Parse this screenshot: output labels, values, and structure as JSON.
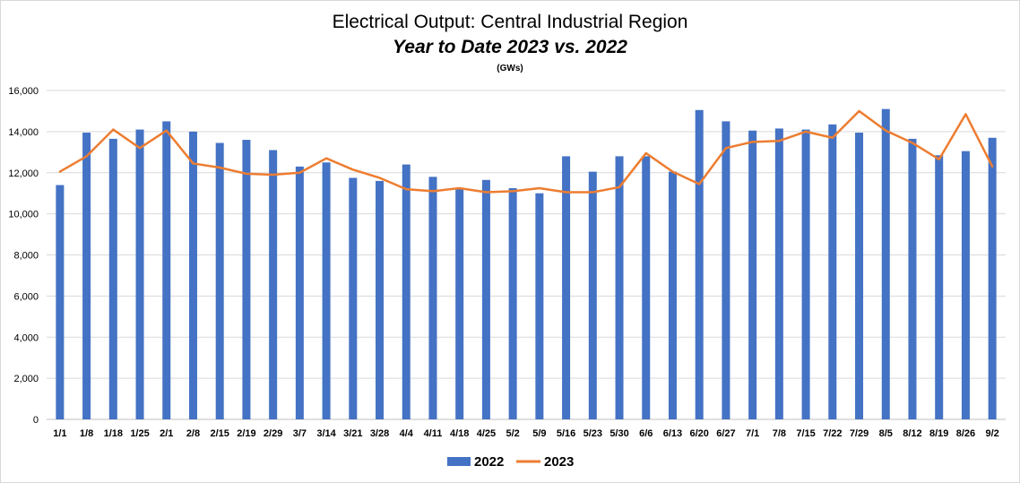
{
  "chart_data": {
    "type": "bar",
    "title": "Electrical Output:  Central Industrial Region",
    "subtitle": "Year to Date 2023 vs. 2022",
    "unit": "(GWs)",
    "ylim": [
      0,
      16000
    ],
    "yticks": [
      0,
      2000,
      4000,
      6000,
      8000,
      10000,
      12000,
      14000,
      16000
    ],
    "ytick_labels": [
      "0",
      "2,000",
      "4,000",
      "6,000",
      "8,000",
      "10,000",
      "12,000",
      "14,000",
      "16,000"
    ],
    "grid": true,
    "legend_position": "bottom",
    "categories": [
      "1/1",
      "1/8",
      "1/18",
      "1/25",
      "2/1",
      "2/8",
      "2/15",
      "2/19",
      "2/29",
      "3/7",
      "3/14",
      "3/21",
      "3/28",
      "4/4",
      "4/11",
      "4/18",
      "4/25",
      "5/2",
      "5/9",
      "5/16",
      "5/23",
      "5/30",
      "6/6",
      "6/13",
      "6/20",
      "6/27",
      "7/1",
      "7/8",
      "7/15",
      "7/22",
      "7/29",
      "8/5",
      "8/12",
      "8/19",
      "8/26",
      "9/2"
    ],
    "series": [
      {
        "name": "2022",
        "type": "bar",
        "color": "#4472C4",
        "values": [
          11400,
          13950,
          13650,
          14100,
          14500,
          14000,
          13450,
          13600,
          13100,
          12300,
          12500,
          11750,
          11600,
          12400,
          11800,
          11200,
          11650,
          11250,
          11000,
          12800,
          12050,
          12800,
          12800,
          12050,
          15050,
          14500,
          14050,
          14150,
          14100,
          14350,
          13950,
          15100,
          13650,
          12850,
          13050,
          13700
        ]
      },
      {
        "name": "2023",
        "type": "line",
        "color": "#ED7D31",
        "values": [
          12050,
          12800,
          14100,
          13200,
          14050,
          12450,
          12250,
          11950,
          11900,
          12000,
          12700,
          12150,
          11750,
          11200,
          11100,
          11250,
          11050,
          11100,
          11250,
          11050,
          11050,
          11300,
          12950,
          12050,
          11450,
          13200,
          13500,
          13550,
          14000,
          13700,
          15000,
          14050,
          13450,
          12650,
          14850,
          12300
        ]
      }
    ]
  }
}
